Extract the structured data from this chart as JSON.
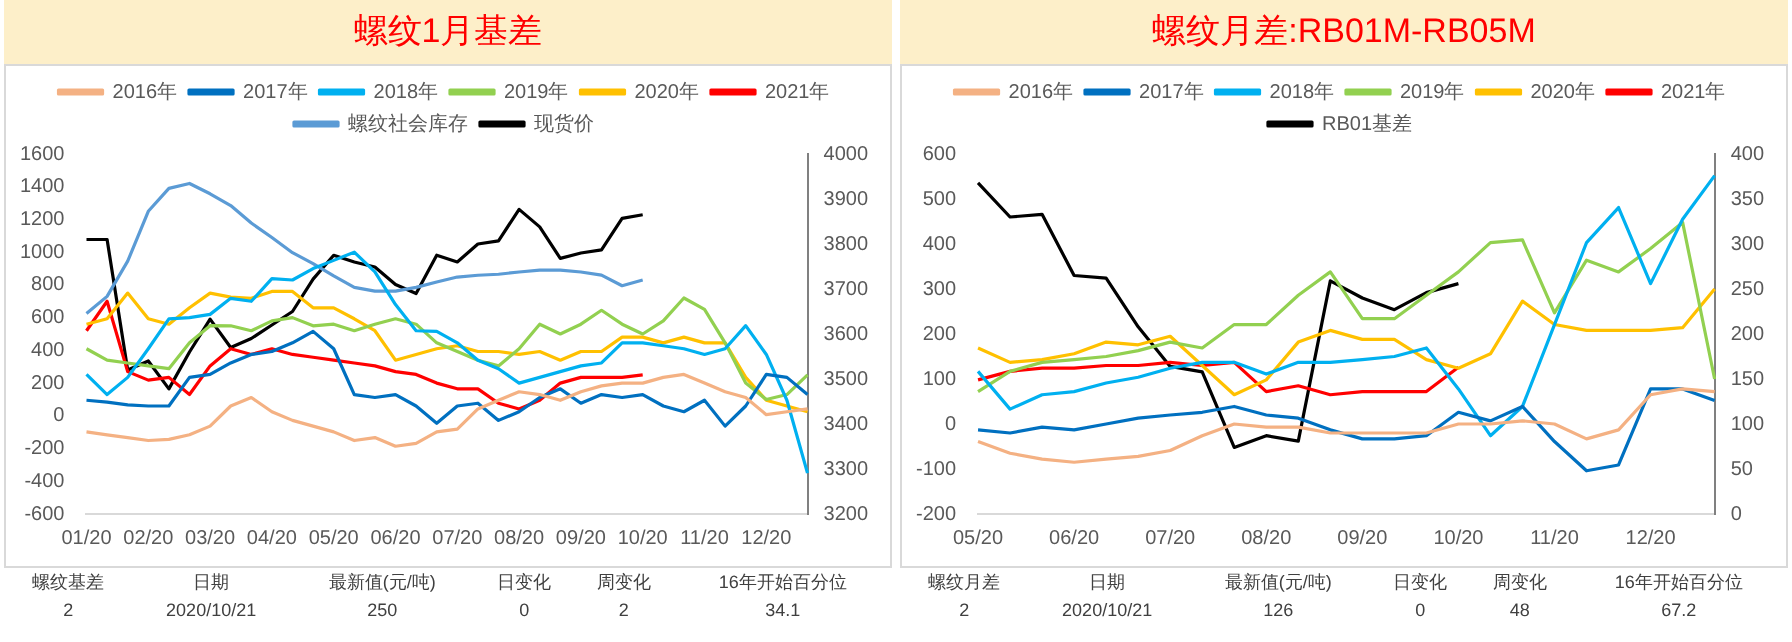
{
  "chart_data": [
    {
      "type": "line",
      "title": "螺纹1月基差",
      "legend": "top",
      "categories": [
        "01/20",
        null,
        null,
        "02/20",
        null,
        null,
        "03/20",
        null,
        null,
        "04/20",
        null,
        null,
        "05/20",
        null,
        null,
        "06/20",
        null,
        null,
        "07/20",
        null,
        null,
        "08/20",
        null,
        null,
        "09/20",
        null,
        null,
        "10/20",
        null,
        null,
        "11/20",
        null,
        null,
        "12/20",
        null,
        null
      ],
      "ylim": [
        -600,
        1600
      ],
      "yticks": [
        -600,
        -400,
        -200,
        0,
        200,
        400,
        600,
        800,
        1000,
        1200,
        1400,
        1600
      ],
      "y2lim": [
        3200,
        4000
      ],
      "y2ticks": [
        3200,
        3300,
        3400,
        3500,
        3600,
        3700,
        3800,
        3900,
        4000
      ],
      "series": [
        {
          "name": "2016年",
          "color": "#f4b183",
          "values": [
            -98,
            -116,
            -133,
            -151,
            -144,
            -116,
            -63,
            60,
            112,
            25,
            -28,
            -63,
            -98,
            -151,
            -133,
            -186,
            -168,
            -98,
            -81,
            42,
            95,
            147,
            130,
            95,
            147,
            183,
            200,
            200,
            235,
            253,
            200,
            147,
            112,
            7,
            25,
            42
          ]
        },
        {
          "name": "2017年",
          "color": "#0070c0",
          "values": [
            95,
            84,
            67,
            60,
            60,
            235,
            253,
            323,
            375,
            393,
            446,
            516,
            410,
            130,
            112,
            130,
            60,
            -46,
            60,
            77,
            -28,
            25,
            112,
            165,
            77,
            130,
            112,
            130,
            60,
            25,
            95,
            -63,
            60,
            253,
            235,
            130
          ]
        },
        {
          "name": "2018年",
          "color": "#00b0f0",
          "values": [
            253,
            130,
            235,
            410,
            593,
            600,
            620,
            718,
            700,
            838,
            830,
            900,
            950,
            1000,
            880,
            680,
            520,
            516,
            446,
            340,
            288,
            200,
            235,
            270,
            305,
            323,
            446,
            446,
            428,
            410,
            375,
            410,
            551,
            375,
            95,
            -350
          ]
        },
        {
          "name": "2019年",
          "color": "#92d050",
          "values": [
            410,
            340,
            323,
            305,
            288,
            446,
            551,
            550,
            520,
            580,
            600,
            550,
            560,
            520,
            560,
            593,
            560,
            446,
            393,
            340,
            305,
            410,
            560,
            500,
            560,
            645,
            560,
            500,
            580,
            720,
            650,
            446,
            200,
            100,
            130,
            250
          ]
        },
        {
          "name": "2020年",
          "color": "#ffc000",
          "values": [
            560,
            593,
            750,
            593,
            560,
            660,
            750,
            725,
            718,
            760,
            760,
            660,
            660,
            593,
            520,
            340,
            375,
            410,
            428,
            393,
            393,
            375,
            393,
            340,
            393,
            393,
            481,
            481,
            446,
            481,
            446,
            446,
            235,
            95,
            60,
            25
          ]
        },
        {
          "name": "2021年",
          "color": "#ff0000",
          "values": [
            520,
            700,
            270,
            218,
            235,
            130,
            305,
            410,
            375,
            410,
            375,
            358,
            340,
            323,
            305,
            270,
            253,
            200,
            165,
            165,
            77,
            42,
            95,
            200,
            235,
            235,
            235,
            250,
            null,
            null,
            null,
            null,
            null,
            null,
            null,
            null
          ]
        },
        {
          "name": "螺纹社会库存",
          "color": "#5b9bd5",
          "values": [
            625,
            730,
            945,
            1250,
            1390,
            1420,
            1357,
            1285,
            1178,
            1090,
            997,
            930,
            855,
            785,
            762,
            762,
            785,
            818,
            848,
            859,
            865,
            879,
            890,
            890,
            879,
            860,
            795,
            830,
            null,
            null,
            null,
            null,
            null,
            null,
            null,
            null
          ]
        },
        {
          "name": "现货价",
          "color": "#000000",
          "axis": "y2",
          "values": [
            3810,
            3810,
            3520,
            3540,
            3478,
            3560,
            3633,
            3570,
            3590,
            3620,
            3650,
            3722,
            3775,
            3760,
            3749,
            3710,
            3690,
            3775,
            3760,
            3800,
            3807,
            3877,
            3838,
            3768,
            3780,
            3787,
            3857,
            3865,
            null,
            null,
            null,
            null,
            null,
            null,
            null,
            null
          ]
        }
      ],
      "annotations": [
        "螺纹基差",
        "日期",
        "最新值(元/吨)",
        "日变化",
        "周变化",
        "16年开始百分位",
        "2",
        "2020/10/21",
        "250",
        "0",
        "2",
        "34.1"
      ]
    },
    {
      "type": "line",
      "title": "螺纹月差:RB01M-RB05M",
      "legend": "top",
      "categories": [
        "05/20",
        null,
        null,
        "06/20",
        null,
        null,
        "07/20",
        null,
        null,
        "08/20",
        null,
        null,
        "09/20",
        null,
        null,
        "10/20",
        null,
        null,
        "11/20",
        null,
        null,
        "12/20",
        null,
        null
      ],
      "ylim": [
        -200,
        600
      ],
      "yticks": [
        -200,
        -100,
        0,
        100,
        200,
        300,
        400,
        500,
        600
      ],
      "y2lim": [
        0,
        400
      ],
      "y2ticks": [
        0,
        50,
        100,
        150,
        200,
        250,
        300,
        350,
        400
      ],
      "series": [
        {
          "name": "2016年",
          "color": "#f4b183",
          "values": [
            -39,
            -65,
            -78,
            -85,
            -78,
            -72,
            -59,
            -26,
            0,
            -7,
            -7,
            -20,
            -20,
            -20,
            -20,
            0,
            0,
            7,
            0,
            -33,
            -13,
            65,
            78,
            72
          ]
        },
        {
          "name": "2017年",
          "color": "#0070c0",
          "values": [
            -13,
            -20,
            -7,
            -13,
            0,
            13,
            20,
            26,
            39,
            20,
            13,
            -13,
            -33,
            -33,
            -26,
            26,
            7,
            39,
            -39,
            -104,
            -91,
            78,
            78,
            52
          ]
        },
        {
          "name": "2018年",
          "color": "#00b0f0",
          "values": [
            117,
            33,
            65,
            72,
            91,
            104,
            124,
            137,
            137,
            111,
            137,
            137,
            143,
            150,
            169,
            78,
            -26,
            39,
            221,
            403,
            481,
            312,
            455,
            552
          ]
        },
        {
          "name": "2019年",
          "color": "#92d050",
          "values": [
            72,
            117,
            137,
            143,
            150,
            163,
            182,
            169,
            221,
            221,
            286,
            338,
            234,
            234,
            286,
            338,
            403,
            409,
            247,
            364,
            338,
            390,
            448,
            100
          ]
        },
        {
          "name": "2020年",
          "color": "#ffc000",
          "values": [
            169,
            137,
            143,
            156,
            182,
            176,
            195,
            130,
            65,
            98,
            182,
            208,
            188,
            188,
            143,
            124,
            156,
            273,
            221,
            208,
            208,
            208,
            214,
            300
          ]
        },
        {
          "name": "2021年",
          "color": "#ff0000",
          "values": [
            98,
            117,
            124,
            124,
            130,
            130,
            137,
            130,
            137,
            72,
            85,
            65,
            72,
            72,
            72,
            126,
            null,
            null,
            null,
            null,
            null,
            null,
            null,
            null
          ]
        },
        {
          "name": "RB01基差",
          "color": "#000000",
          "axis": "y2",
          "values": [
            368,
            330,
            333,
            265,
            262,
            208,
            164,
            158,
            74,
            87,
            81,
            259,
            240,
            227,
            246,
            256,
            null,
            null,
            null,
            null,
            null,
            null,
            null,
            null
          ]
        }
      ],
      "annotations": [
        "螺纹月差",
        "日期",
        "最新值(元/吨)",
        "日变化",
        "周变化",
        "16年开始百分位",
        "2",
        "2020/10/21",
        "126",
        "0",
        "48",
        "67.2"
      ]
    }
  ]
}
